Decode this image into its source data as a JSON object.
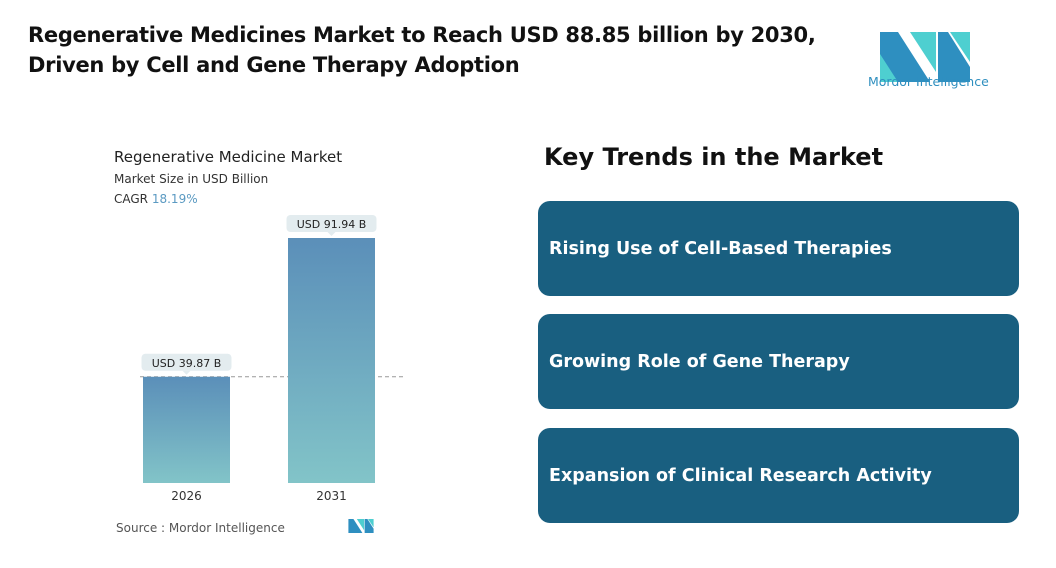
{
  "header": {
    "title": "Regenerative Medicines Market to Reach USD 88.85 billion by 2030, Driven by Cell and Gene Therapy Adoption",
    "logo_text": "Mordor Intelligence"
  },
  "chart_data": {
    "type": "bar",
    "title": "Regenerative Medicine Market",
    "subtitle": "Market Size in USD Billion",
    "cagr_label": "CAGR",
    "cagr_value": "18.19%",
    "categories": [
      "2026",
      "2031"
    ],
    "values": [
      39.87,
      91.94
    ],
    "data_labels": [
      "USD 39.87 B",
      "USD 91.94 B"
    ],
    "ylim": [
      0,
      100
    ],
    "grid": false,
    "bar_color_top": "#5b8fb9",
    "bar_color_bottom": "#82c4c8",
    "source": "Source :  Mordor Intelligence"
  },
  "trends": {
    "title": "Key Trends in the Market",
    "items": [
      "Rising Use of Cell-Based Therapies",
      "Growing Role of Gene Therapy",
      "Expansion of Clinical Research Activity"
    ],
    "card_color": "#195f80"
  }
}
